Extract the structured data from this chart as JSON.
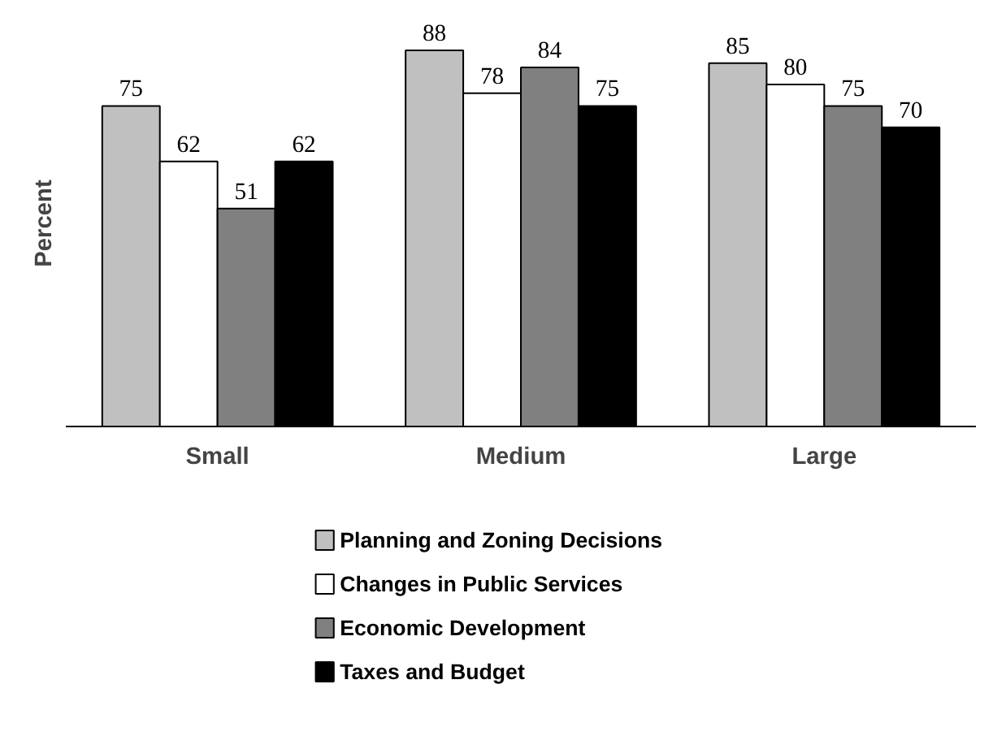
{
  "chart_data": {
    "type": "bar",
    "ylabel": "Percent",
    "categories": [
      "Small",
      "Medium",
      "Large"
    ],
    "series": [
      {
        "name": "Planning and Zoning Decisions",
        "color": "#c0c0c0",
        "values": [
          75,
          88,
          85
        ]
      },
      {
        "name": "Changes in Public Services",
        "color": "#ffffff",
        "values": [
          62,
          78,
          80
        ]
      },
      {
        "name": "Economic Development",
        "color": "#808080",
        "values": [
          51,
          84,
          75
        ]
      },
      {
        "name": "Taxes and Budget",
        "color": "#000000",
        "values": [
          62,
          75,
          70
        ]
      }
    ],
    "data_labels": true,
    "legend": "bottom",
    "grid": false,
    "tick_labels": "x"
  }
}
